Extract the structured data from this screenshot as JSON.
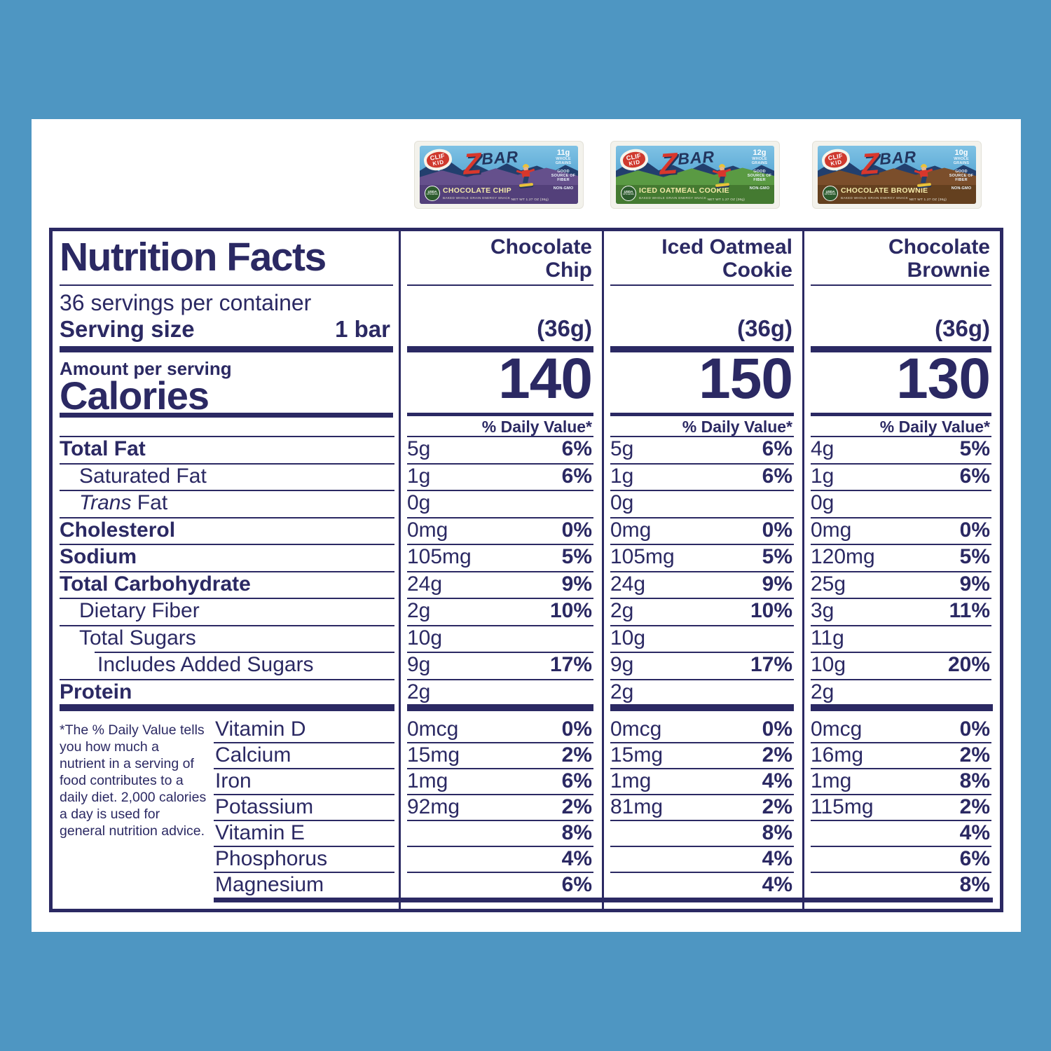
{
  "colors": {
    "page_blue": "#4e96c2",
    "panel": "#ffffff",
    "ink": "#2b2963",
    "brand_red": "#cf3a2e",
    "brand_navy": "#22355e",
    "seal_green": "#2d5b2e"
  },
  "products": [
    {
      "brand_line1": "CLIF",
      "brand_line2": "KID",
      "logo_z": "Z",
      "logo_bar": "BAR",
      "grains_amount": "11g",
      "grains_label": "WHOLE GRAINS",
      "fiber_label": "GOOD SOURCE OF FIBER",
      "gmo_label": "NON-GMO",
      "usda_line1": "USDA",
      "usda_line2": "ORGANIC",
      "flavor": "CHOCOLATE CHIP",
      "tagline": "BAKED WHOLE GRAIN ENERGY SNACK",
      "net_wt": "NET WT 1.27 OZ (36g)",
      "colors": {
        "ground": "#65508c",
        "band": "#53407a"
      }
    },
    {
      "brand_line1": "CLIF",
      "brand_line2": "KID",
      "logo_z": "Z",
      "logo_bar": "BAR",
      "grains_amount": "12g",
      "grains_label": "WHOLE GRAINS",
      "fiber_label": "GOOD SOURCE OF FIBER",
      "gmo_label": "NON-GMO",
      "usda_line1": "USDA",
      "usda_line2": "ORGANIC",
      "flavor": "ICED OATMEAL COOKIE",
      "tagline": "BAKED WHOLE GRAIN ENERGY SNACK",
      "net_wt": "NET WT 1.27 OZ (36g)",
      "colors": {
        "ground": "#5a9a43",
        "band": "#447a31"
      }
    },
    {
      "brand_line1": "CLIF",
      "brand_line2": "KID",
      "logo_z": "Z",
      "logo_bar": "BAR",
      "grains_amount": "10g",
      "grains_label": "WHOLE GRAINS",
      "fiber_label": "GOOD SOURCE OF FIBER",
      "gmo_label": "NON-GMO",
      "usda_line1": "USDA",
      "usda_line2": "ORGANIC",
      "flavor": "CHOCOLATE BROWNIE",
      "tagline": "BAKED WHOLE GRAIN ENERGY SNACK",
      "net_wt": "NET WT 1.27 OZ (36g)",
      "colors": {
        "ground": "#7b4e2b",
        "band": "#64401f"
      }
    }
  ],
  "label": {
    "title": "Nutrition Facts",
    "servings": "36 servings per container",
    "serving_size_label": "Serving size",
    "serving_size_value": "1 bar",
    "amount_per_serving": "Amount per serving",
    "calories_label": "Calories",
    "daily_value_header": "% Daily Value*",
    "columns": [
      {
        "flavor_line1": "Chocolate",
        "flavor_line2": "Chip",
        "serving_g": "(36g)",
        "calories": "140"
      },
      {
        "flavor_line1": "Iced Oatmeal",
        "flavor_line2": "Cookie",
        "serving_g": "(36g)",
        "calories": "150"
      },
      {
        "flavor_line1": "Chocolate",
        "flavor_line2": "Brownie",
        "serving_g": "(36g)",
        "calories": "130"
      }
    ],
    "rows": [
      {
        "label": "Total Fat",
        "bold": true,
        "indent": 0,
        "values": [
          [
            "5g",
            "6%"
          ],
          [
            "5g",
            "6%"
          ],
          [
            "4g",
            "5%"
          ]
        ]
      },
      {
        "label": "Saturated Fat",
        "indent": 1,
        "values": [
          [
            "1g",
            "6%"
          ],
          [
            "1g",
            "6%"
          ],
          [
            "1g",
            "6%"
          ]
        ]
      },
      {
        "label_italic": "Trans",
        "label": " Fat",
        "indent": 1,
        "values": [
          [
            "0g",
            ""
          ],
          [
            "0g",
            ""
          ],
          [
            "0g",
            ""
          ]
        ]
      },
      {
        "label": "Cholesterol",
        "bold": true,
        "indent": 0,
        "values": [
          [
            "0mg",
            "0%"
          ],
          [
            "0mg",
            "0%"
          ],
          [
            "0mg",
            "0%"
          ]
        ]
      },
      {
        "label": "Sodium",
        "bold": true,
        "indent": 0,
        "values": [
          [
            "105mg",
            "5%"
          ],
          [
            "105mg",
            "5%"
          ],
          [
            "120mg",
            "5%"
          ]
        ]
      },
      {
        "label": "Total Carbohydrate",
        "bold": true,
        "indent": 0,
        "values": [
          [
            "24g",
            "9%"
          ],
          [
            "24g",
            "9%"
          ],
          [
            "25g",
            "9%"
          ]
        ]
      },
      {
        "label": "Dietary Fiber",
        "indent": 1,
        "values": [
          [
            "2g",
            "10%"
          ],
          [
            "2g",
            "10%"
          ],
          [
            "3g",
            "11%"
          ]
        ]
      },
      {
        "label": "Total Sugars",
        "indent": 1,
        "values": [
          [
            "10g",
            ""
          ],
          [
            "10g",
            ""
          ],
          [
            "11g",
            ""
          ]
        ]
      },
      {
        "label": "Includes Added Sugars",
        "indent": 2,
        "values": [
          [
            "9g",
            "17%"
          ],
          [
            "9g",
            "17%"
          ],
          [
            "10g",
            "20%"
          ]
        ]
      },
      {
        "label": "Protein",
        "bold": true,
        "indent": 0,
        "values": [
          [
            "2g",
            ""
          ],
          [
            "2g",
            ""
          ],
          [
            "2g",
            ""
          ]
        ]
      }
    ],
    "vitamins": [
      {
        "label": "Vitamin D",
        "values": [
          [
            "0mcg",
            "0%"
          ],
          [
            "0mcg",
            "0%"
          ],
          [
            "0mcg",
            "0%"
          ]
        ]
      },
      {
        "label": "Calcium",
        "values": [
          [
            "15mg",
            "2%"
          ],
          [
            "15mg",
            "2%"
          ],
          [
            "16mg",
            "2%"
          ]
        ]
      },
      {
        "label": "Iron",
        "values": [
          [
            "1mg",
            "6%"
          ],
          [
            "1mg",
            "4%"
          ],
          [
            "1mg",
            "8%"
          ]
        ]
      },
      {
        "label": "Potassium",
        "values": [
          [
            "92mg",
            "2%"
          ],
          [
            "81mg",
            "2%"
          ],
          [
            "115mg",
            "2%"
          ]
        ]
      },
      {
        "label": "Vitamin E",
        "values": [
          [
            "",
            "8%"
          ],
          [
            "",
            "8%"
          ],
          [
            "",
            "4%"
          ]
        ]
      },
      {
        "label": "Phosphorus",
        "values": [
          [
            "",
            "4%"
          ],
          [
            "",
            "4%"
          ],
          [
            "",
            "6%"
          ]
        ]
      },
      {
        "label": "Magnesium",
        "values": [
          [
            "",
            "6%"
          ],
          [
            "",
            "4%"
          ],
          [
            "",
            "8%"
          ]
        ]
      }
    ],
    "footnote": "*The % Daily Value tells you how much a nutrient in a serving of food contributes to a daily diet. 2,000 calories a day is used for general nutrition advice."
  }
}
